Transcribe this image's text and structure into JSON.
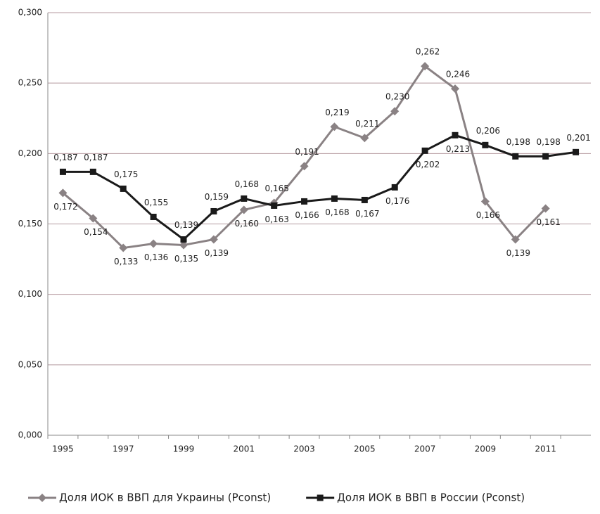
{
  "chart_data": {
    "type": "line",
    "categories": [
      "1995",
      null,
      "1997",
      null,
      "1999",
      null,
      "2001",
      null,
      "2003",
      null,
      "2005",
      null,
      "2007",
      null,
      "2009",
      null,
      "2011",
      null
    ],
    "series": [
      {
        "name": "Доля ИОК в ВВП для Украины (Pconst)",
        "color": "#8a8284",
        "marker": "diamond",
        "values": [
          0.172,
          0.154,
          0.133,
          0.136,
          0.135,
          0.139,
          0.16,
          0.165,
          0.191,
          0.219,
          0.211,
          0.23,
          0.262,
          0.246,
          0.166,
          0.139,
          0.161,
          null
        ],
        "value_labels": [
          "0,172",
          "0,154",
          "0,133",
          "0,136",
          "0,135",
          "0,139",
          "0,160",
          "0,165",
          "0,191",
          "0,219",
          "0,211",
          "0,230",
          "0,262",
          "0,246",
          "0,166",
          "0,139",
          "0,161",
          null
        ]
      },
      {
        "name": "Доля ИОК в ВВП в России (Pconst)",
        "color": "#1a1a1a",
        "marker": "square",
        "values": [
          0.187,
          0.187,
          0.175,
          0.155,
          0.139,
          0.159,
          0.168,
          0.163,
          0.166,
          0.168,
          0.167,
          0.176,
          0.202,
          0.213,
          0.206,
          0.198,
          0.198,
          0.201
        ],
        "value_labels": [
          "0,187",
          "0,187",
          "0,175",
          "0,155",
          "0,139",
          "0,159",
          "0,168",
          "0,163",
          "0,166",
          "0,168",
          "0,167",
          "0,176",
          "0,202",
          "0,213",
          "0,206",
          "0,198",
          "0,198",
          "0,201"
        ]
      }
    ],
    "ylim": [
      0,
      0.3
    ],
    "yticks": [
      {
        "value": 0,
        "label": "0,000"
      },
      {
        "value": 0.05,
        "label": "0,050"
      },
      {
        "value": 0.1,
        "label": "0,100"
      },
      {
        "value": 0.15,
        "label": "0,150"
      },
      {
        "value": 0.2,
        "label": "0,200"
      },
      {
        "value": 0.25,
        "label": "0,250"
      },
      {
        "value": 0.3,
        "label": "0,300"
      }
    ],
    "grid": true,
    "legend": "bottom"
  }
}
